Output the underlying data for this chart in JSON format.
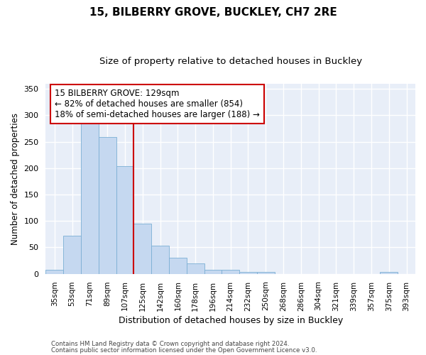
{
  "title": "15, BILBERRY GROVE, BUCKLEY, CH7 2RE",
  "subtitle": "Size of property relative to detached houses in Buckley",
  "xlabel": "Distribution of detached houses by size in Buckley",
  "ylabel": "Number of detached properties",
  "categories": [
    "35sqm",
    "53sqm",
    "71sqm",
    "89sqm",
    "107sqm",
    "125sqm",
    "142sqm",
    "160sqm",
    "178sqm",
    "196sqm",
    "214sqm",
    "232sqm",
    "250sqm",
    "268sqm",
    "286sqm",
    "304sqm",
    "321sqm",
    "339sqm",
    "357sqm",
    "375sqm",
    "393sqm"
  ],
  "values": [
    8,
    72,
    285,
    259,
    204,
    95,
    53,
    31,
    20,
    8,
    7,
    4,
    4,
    0,
    0,
    0,
    0,
    0,
    0,
    3,
    0
  ],
  "bar_color": "#c5d8f0",
  "bar_edge_color": "#7bafd4",
  "bar_width": 1.0,
  "property_line_color": "#cc0000",
  "annotation_line1": "15 BILBERRY GROVE: 129sqm",
  "annotation_line2": "← 82% of detached houses are smaller (854)",
  "annotation_line3": "18% of semi-detached houses are larger (188) →",
  "annotation_box_facecolor": "#ffffff",
  "annotation_box_edgecolor": "#cc0000",
  "ylim": [
    0,
    360
  ],
  "yticks": [
    0,
    50,
    100,
    150,
    200,
    250,
    300,
    350
  ],
  "bg_color": "#e8eef8",
  "grid_color": "#ffffff",
  "fig_facecolor": "#ffffff",
  "footnote1": "Contains HM Land Registry data © Crown copyright and database right 2024.",
  "footnote2": "Contains public sector information licensed under the Open Government Licence v3.0.",
  "property_bin_index": 5
}
